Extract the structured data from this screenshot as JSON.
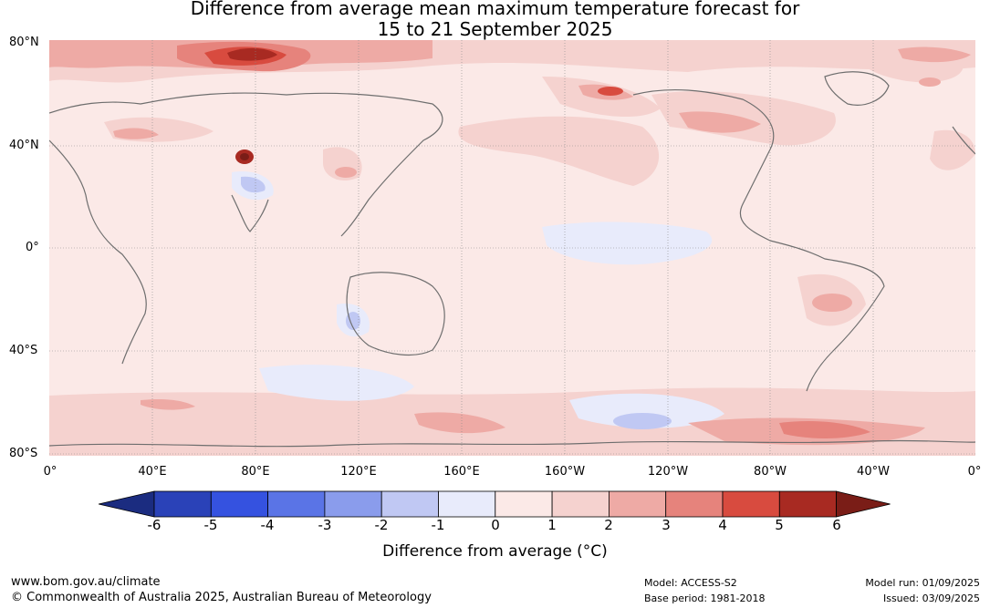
{
  "title_line1": "Difference from average mean maximum temperature forecast for",
  "title_line2": "15 to 21 September 2025",
  "lat_labels": [
    "80°N",
    "40°N",
    "0°",
    "40°S",
    "80°S"
  ],
  "lon_labels": [
    "0°",
    "40°E",
    "80°E",
    "120°E",
    "160°E",
    "160°W",
    "120°W",
    "80°W",
    "40°W",
    "0°"
  ],
  "colorbar": {
    "ticks": [
      "-6",
      "-5",
      "-4",
      "-3",
      "-2",
      "-1",
      "0",
      "1",
      "2",
      "3",
      "4",
      "5",
      "6"
    ],
    "colors": [
      "#1b2c80",
      "#2a42b8",
      "#3552e0",
      "#5a74e6",
      "#8a9cec",
      "#c0c8f3",
      "#e8ebfb",
      "#fbe9e7",
      "#f5d2cf",
      "#eeaaa5",
      "#e6837c",
      "#d84b3f",
      "#a82a22",
      "#7a1d17"
    ],
    "label": "Difference from average (°C)"
  },
  "footer": {
    "url": "www.bom.gov.au/climate",
    "copyright": "© Commonwealth of Australia 2025, Australian Bureau of Meteorology",
    "model": "Model: ACCESS-S2",
    "base_period": "Base period: 1981-2018",
    "model_run": "Model run: 01/09/2025",
    "issued": "Issued: 03/09/2025"
  }
}
